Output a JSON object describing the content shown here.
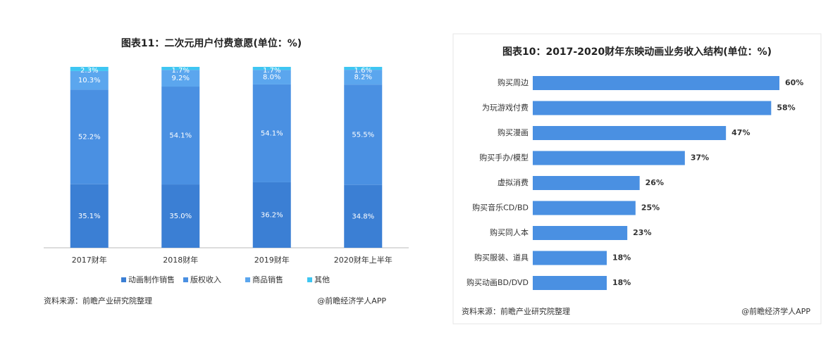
{
  "chart_data": [
    {
      "type": "stacked_bar",
      "title": "图表11：二次元用户付费意愿(单位：%)",
      "categories": [
        "2017财年",
        "2018财年",
        "2019财年",
        "2020财年上半年"
      ],
      "series": [
        {
          "name": "动画制作销售",
          "color": "#3b7fd4",
          "values": [
            35.1,
            35.0,
            36.2,
            34.8
          ],
          "value_labels": [
            "35.1%",
            "35.0%",
            "36.2%",
            "34.8%"
          ]
        },
        {
          "name": "版权收入",
          "color": "#4a90e2",
          "values": [
            52.2,
            54.1,
            54.1,
            55.5
          ],
          "value_labels": [
            "52.2%",
            "54.1%",
            "54.1%",
            "55.5%"
          ]
        },
        {
          "name": "商品销售",
          "color": "#5ba6ee",
          "values": [
            10.3,
            9.2,
            8.0,
            8.2
          ],
          "value_labels": [
            "10.3%",
            "9.2%",
            "8.0%",
            "8.2%"
          ]
        },
        {
          "name": "其他",
          "color": "#3ec6f2",
          "values": [
            2.3,
            1.7,
            1.7,
            1.6
          ],
          "value_labels": [
            "2.3%",
            "1.7%",
            "1.7%",
            "1.6%"
          ]
        }
      ],
      "source": "资料来源：前瞻产业研究院整理",
      "credit": "@前瞻经济学人APP"
    },
    {
      "type": "hbar",
      "title": "图表10：2017-2020财年东映动画业务收入结构(单位：%)",
      "categories": [
        "购买周边",
        "为玩游戏付费",
        "购买漫画",
        "购买手办/模型",
        "虚拟消费",
        "购买音乐CD/BD",
        "购买同人本",
        "购买服装、道具",
        "购买动画BD/DVD"
      ],
      "values": [
        60,
        58,
        47,
        37,
        26,
        25,
        23,
        18,
        18
      ],
      "value_labels": [
        "60%",
        "58%",
        "47%",
        "37%",
        "26%",
        "25%",
        "23%",
        "18%",
        "18%"
      ],
      "color": "#4a90e2",
      "source": "资料来源：前瞻产业研究院整理",
      "credit": "@前瞻经济学人APP"
    }
  ]
}
